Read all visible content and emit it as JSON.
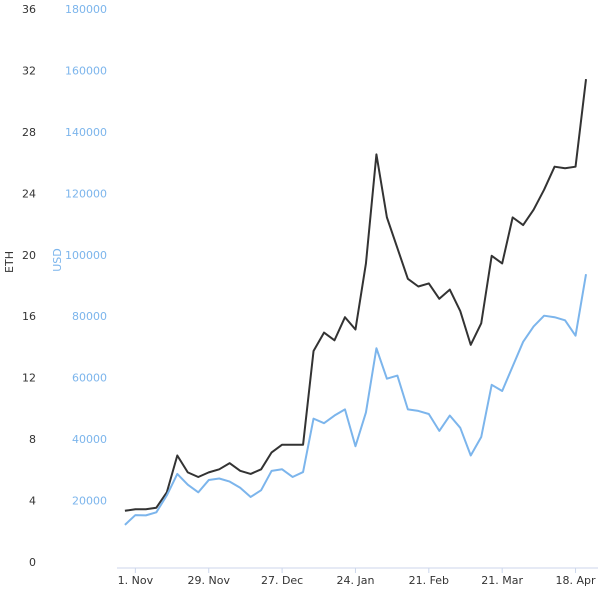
{
  "chart_data": {
    "type": "line",
    "y_label": "ETH",
    "y2_label": "USD",
    "categories": [
      null,
      "1. Nov",
      null,
      null,
      null,
      null,
      null,
      null,
      "29. Nov",
      null,
      null,
      null,
      null,
      null,
      null,
      "27. Dec",
      null,
      null,
      null,
      null,
      null,
      null,
      "24. Jan",
      null,
      null,
      null,
      null,
      null,
      null,
      "21. Feb",
      null,
      null,
      null,
      null,
      null,
      null,
      "21. Mar",
      null,
      null,
      null,
      null,
      null,
      null,
      "18. Apr",
      null
    ],
    "series": [
      {
        "name": "ETH",
        "color": "#333333",
        "axis": "y",
        "values": [
          3.4,
          3.5,
          3.5,
          3.6,
          4.6,
          7.0,
          5.9,
          5.6,
          5.9,
          6.1,
          6.5,
          6.0,
          5.8,
          6.1,
          7.2,
          7.7,
          7.7,
          7.7,
          13.8,
          15.0,
          14.5,
          16.0,
          15.2,
          19.5,
          26.6,
          22.5,
          20.5,
          18.5,
          18.0,
          18.2,
          17.2,
          17.8,
          16.4,
          14.2,
          15.6,
          20.0,
          19.5,
          22.5,
          22.0,
          23.0,
          24.3,
          25.8,
          25.7,
          25.8,
          31.5
        ]
      },
      {
        "name": "USD",
        "color": "#7cb5ec",
        "axis": "y2",
        "values": [
          12400,
          15600,
          15500,
          16500,
          22000,
          29000,
          25500,
          23000,
          27000,
          27500,
          26500,
          24500,
          21500,
          23700,
          30000,
          30500,
          28000,
          29600,
          47000,
          45500,
          48000,
          50000,
          38000,
          49000,
          69900,
          60000,
          61000,
          50000,
          49500,
          48500,
          43000,
          48000,
          44000,
          35000,
          41000,
          58000,
          56000,
          64000,
          72000,
          77000,
          80500,
          80000,
          79000,
          74000,
          94000
        ]
      }
    ],
    "ylim": [
      0,
      36
    ],
    "yticks": [
      0,
      4,
      8,
      12,
      16,
      20,
      24,
      28,
      32,
      36
    ],
    "y2lim": [
      0,
      180000
    ],
    "y2ticks": [
      20000,
      40000,
      60000,
      80000,
      100000,
      120000,
      140000,
      160000,
      180000
    ]
  }
}
